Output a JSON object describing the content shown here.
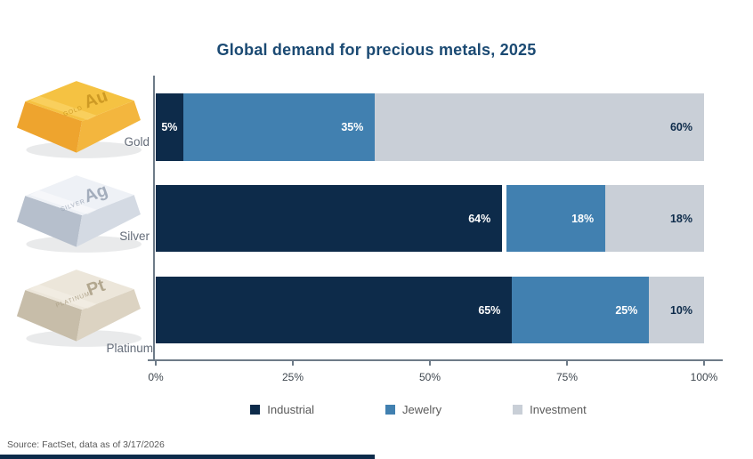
{
  "chart_data": {
    "type": "bar",
    "orientation": "horizontal",
    "stacked": true,
    "title": "Global demand for precious metals, 2025",
    "categories": [
      "Gold",
      "Silver",
      "Platinum"
    ],
    "series": [
      {
        "name": "Industrial",
        "color": "#0d2b4a",
        "values": [
          5,
          64,
          65
        ]
      },
      {
        "name": "Jewelry",
        "color": "#4180b0",
        "values": [
          35,
          18,
          25
        ]
      },
      {
        "name": "Investment",
        "color": "#c9cfd7",
        "values": [
          60,
          18,
          10
        ]
      }
    ],
    "value_suffix": "%",
    "x_ticks": [
      "0%",
      "25%",
      "50%",
      "75%",
      "100%"
    ],
    "xlim": [
      0,
      100
    ],
    "grid": false,
    "legend_position": "bottom"
  },
  "metals": [
    {
      "symbol": "Au",
      "engraving": "GOLD",
      "palette": {
        "top": "#f5c242",
        "left": "#eea42e",
        "right": "#f3b63e",
        "text": "#c8941f",
        "highlight": "#ffdf7e"
      }
    },
    {
      "symbol": "Ag",
      "engraving": "SILVER",
      "palette": {
        "top": "#eef1f6",
        "left": "#b6bfcc",
        "right": "#d4dae3",
        "text": "#97a2b2",
        "highlight": "#ffffff"
      }
    },
    {
      "symbol": "Pt",
      "engraving": "PLATINUM",
      "palette": {
        "top": "#ece6da",
        "left": "#c7bda9",
        "right": "#dcd3c2",
        "text": "#a99d82",
        "highlight": "#f8f4ec"
      }
    }
  ],
  "colors": {
    "title": "#1b4a73",
    "axis": "#6e7b88",
    "tick_label": "#3f474f",
    "category_label": "#646c79",
    "legend_text": "#595959",
    "source_text": "#595959",
    "on_bar_text": "#ffffff",
    "on_investment_text": "#0d2b4a",
    "footer_bar": "#0d2b4a"
  },
  "source_note": "Source: FactSet, data as of 3/17/2026"
}
